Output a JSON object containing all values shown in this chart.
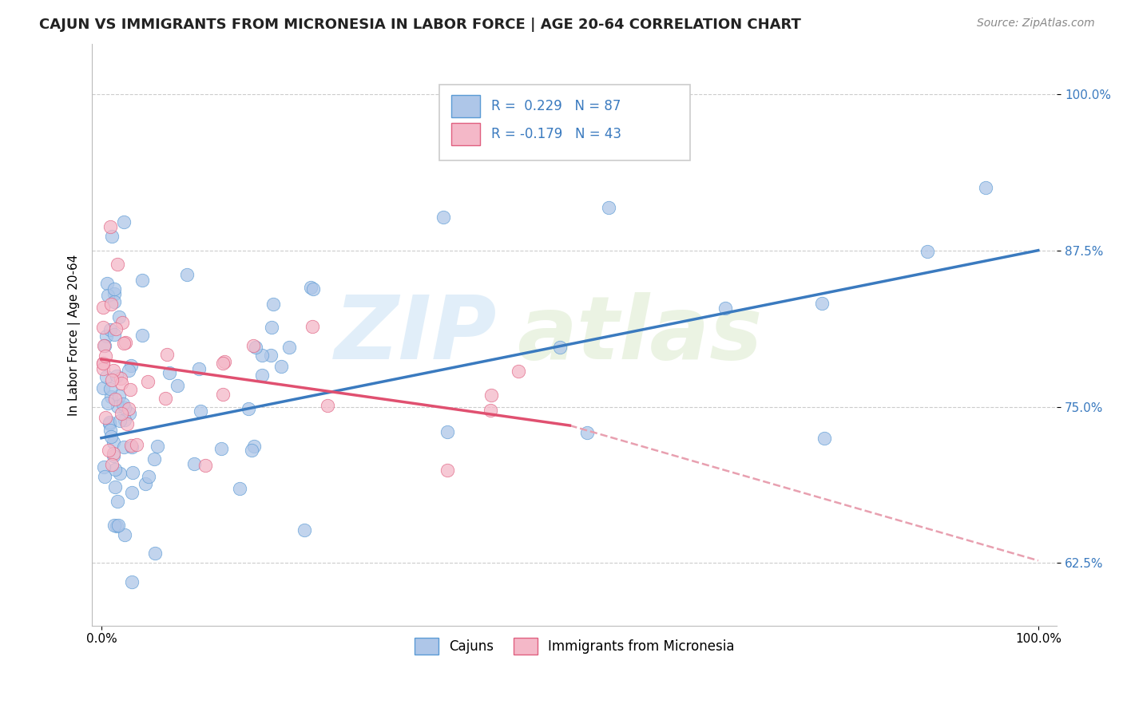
{
  "title": "CAJUN VS IMMIGRANTS FROM MICRONESIA IN LABOR FORCE | AGE 20-64 CORRELATION CHART",
  "source": "Source: ZipAtlas.com",
  "ylabel": "In Labor Force | Age 20-64",
  "cajun_color": "#aec6e8",
  "cajun_edge_color": "#5b9bd5",
  "micronesia_color": "#f4b8c8",
  "micronesia_edge_color": "#e06080",
  "trendline_cajun_color": "#3a7abf",
  "trendline_micro_color": "#e05070",
  "trendline_dashed_color": "#e8a0b0",
  "cajun_label": "Cajuns",
  "micronesia_label": "Immigrants from Micronesia",
  "watermark_zip_color": "#d0e8f8",
  "watermark_atlas_color": "#d0e8f8",
  "title_fontsize": 13,
  "axis_label_fontsize": 11,
  "tick_fontsize": 11,
  "source_fontsize": 10,
  "legend_fontsize": 12
}
